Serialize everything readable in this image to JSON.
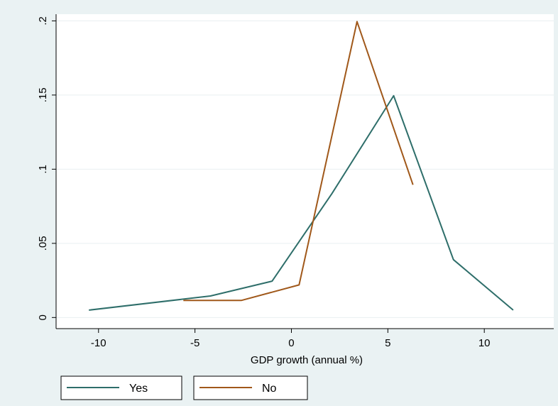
{
  "chart_data": {
    "type": "line",
    "xlabel": "GDP growth (annual %)",
    "ylabel": "",
    "xlim": [
      -12.2,
      13.6
    ],
    "ylim": [
      -0.0075,
      0.2045
    ],
    "x_ticks": [
      "-10",
      "-5",
      "0",
      "5",
      "10"
    ],
    "y_ticks": [
      "0",
      ".05",
      ".1",
      ".15",
      ".2"
    ],
    "grid": true,
    "legend_position": "bottom",
    "series": [
      {
        "name": "Yes",
        "color": "#2e6e6a",
        "points": [
          [
            -10.5,
            0.005
          ],
          [
            -4.2,
            0.0145
          ],
          [
            -1.0,
            0.0245
          ],
          [
            2.1,
            0.0835
          ],
          [
            5.3,
            0.1495
          ],
          [
            8.4,
            0.039
          ],
          [
            11.5,
            0.005
          ]
        ]
      },
      {
        "name": "No",
        "color": "#a0581a",
        "points": [
          [
            -5.6,
            0.0115
          ],
          [
            -2.6,
            0.0115
          ],
          [
            0.4,
            0.022
          ],
          [
            3.4,
            0.1995
          ],
          [
            6.3,
            0.0895
          ]
        ]
      }
    ]
  }
}
